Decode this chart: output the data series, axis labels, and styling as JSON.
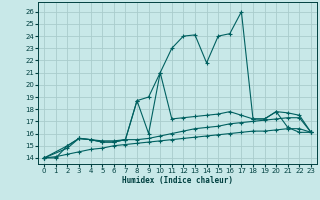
{
  "xlabel": "Humidex (Indice chaleur)",
  "bg_color": "#c8e8e8",
  "grid_color": "#aacccc",
  "line_color": "#006060",
  "xlim": [
    -0.5,
    23.5
  ],
  "ylim": [
    13.5,
    26.8
  ],
  "xticks": [
    0,
    1,
    2,
    3,
    4,
    5,
    6,
    7,
    8,
    9,
    10,
    11,
    12,
    13,
    14,
    15,
    16,
    17,
    18,
    19,
    20,
    21,
    22,
    23
  ],
  "yticks": [
    14,
    15,
    16,
    17,
    18,
    19,
    20,
    21,
    22,
    23,
    24,
    25,
    26
  ],
  "series": [
    {
      "x": [
        0,
        1,
        2,
        3,
        4,
        5,
        6,
        7,
        8,
        9,
        10,
        11,
        12,
        13,
        14,
        15,
        16,
        17,
        18,
        19,
        20,
        21,
        22,
        23
      ],
      "y": [
        14.0,
        14.1,
        14.3,
        14.5,
        14.7,
        14.8,
        15.0,
        15.1,
        15.2,
        15.3,
        15.4,
        15.5,
        15.6,
        15.7,
        15.8,
        15.9,
        16.0,
        16.1,
        16.2,
        16.2,
        16.3,
        16.4,
        16.4,
        16.1
      ]
    },
    {
      "x": [
        0,
        1,
        2,
        3,
        4,
        5,
        6,
        7,
        8,
        9,
        10,
        11,
        12,
        13,
        14,
        15,
        16,
        17,
        18,
        19,
        20,
        21,
        22,
        23
      ],
      "y": [
        14.0,
        14.0,
        15.0,
        15.6,
        15.5,
        15.4,
        15.4,
        15.5,
        15.5,
        15.6,
        15.8,
        16.0,
        16.2,
        16.4,
        16.5,
        16.6,
        16.8,
        16.9,
        17.0,
        17.1,
        17.2,
        17.3,
        17.3,
        16.1
      ]
    },
    {
      "x": [
        0,
        2,
        3,
        4,
        5,
        6,
        7,
        8,
        9,
        10,
        11,
        12,
        13,
        14,
        15,
        16,
        17,
        18,
        19,
        20,
        21,
        22,
        23
      ],
      "y": [
        14.0,
        15.0,
        15.6,
        15.5,
        15.3,
        15.3,
        15.5,
        18.7,
        19.0,
        21.0,
        17.2,
        17.3,
        17.4,
        17.5,
        17.6,
        17.8,
        17.5,
        17.2,
        17.2,
        17.8,
        17.7,
        17.5,
        16.1
      ]
    },
    {
      "x": [
        0,
        2,
        3,
        4,
        5,
        6,
        7,
        8,
        9,
        10,
        11,
        12,
        13,
        14,
        15,
        16,
        17,
        18,
        19,
        20,
        21,
        22,
        23
      ],
      "y": [
        14.0,
        14.8,
        15.6,
        15.5,
        15.3,
        15.3,
        15.5,
        18.7,
        16.0,
        21.0,
        23.0,
        24.0,
        24.1,
        21.8,
        24.0,
        24.2,
        26.0,
        17.2,
        17.2,
        17.8,
        16.5,
        16.1,
        16.1
      ]
    }
  ]
}
